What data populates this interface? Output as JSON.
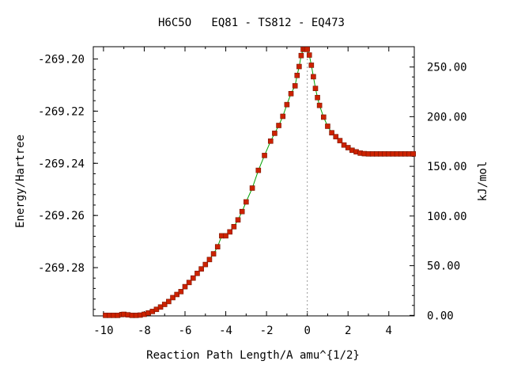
{
  "chart_data": {
    "type": "line",
    "title": "H6C5O   EQ81 - TS812 - EQ473",
    "xlabel": "Reaction Path Length/A amu^{1/2}",
    "ylabel": "Energy/Hartree",
    "y2label": "kJ/mol",
    "xlim": [
      -10.5,
      5.25
    ],
    "ylim": [
      -269.2985,
      -269.1953
    ],
    "x_ticks": [
      "-10",
      "-8",
      "-6",
      "-4",
      "-2",
      "0",
      "2",
      "4"
    ],
    "y_ticks": [
      "-269.20",
      "-269.22",
      "-269.24",
      "-269.26",
      "-269.28"
    ],
    "y2_ticks": [
      "0.00",
      "50.00",
      "100.00",
      "150.00",
      "200.00",
      "250.00"
    ],
    "grid": false,
    "reference_line_x": 0,
    "colors": {
      "line": "#00a000",
      "marker": "#cc2200",
      "marker_edge": "#7a1400",
      "reference": "#999999"
    },
    "series": [
      {
        "x": [
          -9.9,
          -9.7,
          -9.5,
          -9.3,
          -9.1,
          -9.0,
          -8.8,
          -8.6,
          -8.4,
          -8.2,
          -8.0,
          -7.8,
          -7.6,
          -7.4,
          -7.2,
          -7.0,
          -6.8,
          -6.6,
          -6.4,
          -6.2,
          -6.0,
          -5.8,
          -5.6,
          -5.4,
          -5.2,
          -5.0,
          -4.8,
          -4.6,
          -4.4,
          -4.2,
          -4.0,
          -3.8,
          -3.6,
          -3.4,
          -3.2,
          -3.0,
          -2.7,
          -2.4,
          -2.1,
          -1.8,
          -1.6,
          -1.4,
          -1.2,
          -1.0,
          -0.8,
          -0.6,
          -0.5,
          -0.4,
          -0.3,
          -0.2,
          -0.1,
          0.0,
          0.1,
          0.2,
          0.3,
          0.4,
          0.5,
          0.6,
          0.8,
          1.0,
          1.2,
          1.4,
          1.6,
          1.8,
          2.0,
          2.2,
          2.4,
          2.6,
          2.8,
          3.0,
          3.2,
          3.4,
          3.6,
          3.8,
          4.0,
          4.2,
          4.4,
          4.6,
          4.8,
          5.0,
          5.2
        ],
        "y": [
          -269.2983,
          -269.2983,
          -269.2983,
          -269.2983,
          -269.298,
          -269.2979,
          -269.2981,
          -269.2983,
          -269.2983,
          -269.2982,
          -269.2979,
          -269.2974,
          -269.2968,
          -269.296,
          -269.2951,
          -269.2941,
          -269.293,
          -269.2915,
          -269.2903,
          -269.2892,
          -269.2873,
          -269.2857,
          -269.284,
          -269.2822,
          -269.2805,
          -269.2788,
          -269.2769,
          -269.2747,
          -269.272,
          -269.2678,
          -269.2678,
          -269.2663,
          -269.2643,
          -269.2617,
          -269.2585,
          -269.2548,
          -269.2495,
          -269.2427,
          -269.237,
          -269.2315,
          -269.2285,
          -269.2255,
          -269.222,
          -269.2175,
          -269.2133,
          -269.2103,
          -269.2063,
          -269.2029,
          -269.1987,
          -269.1963,
          -269.1963,
          -269.1963,
          -269.1985,
          -269.2024,
          -269.2068,
          -269.2113,
          -269.2148,
          -269.2178,
          -269.2223,
          -269.2258,
          -269.2283,
          -269.2298,
          -269.2313,
          -269.233,
          -269.234,
          -269.235,
          -269.2356,
          -269.2361,
          -269.2363,
          -269.2364,
          -269.2364,
          -269.2364,
          -269.2364,
          -269.2364,
          -269.2364,
          -269.2364,
          -269.2364,
          -269.2364,
          -269.2364,
          -269.2364,
          -269.2364
        ]
      }
    ]
  }
}
